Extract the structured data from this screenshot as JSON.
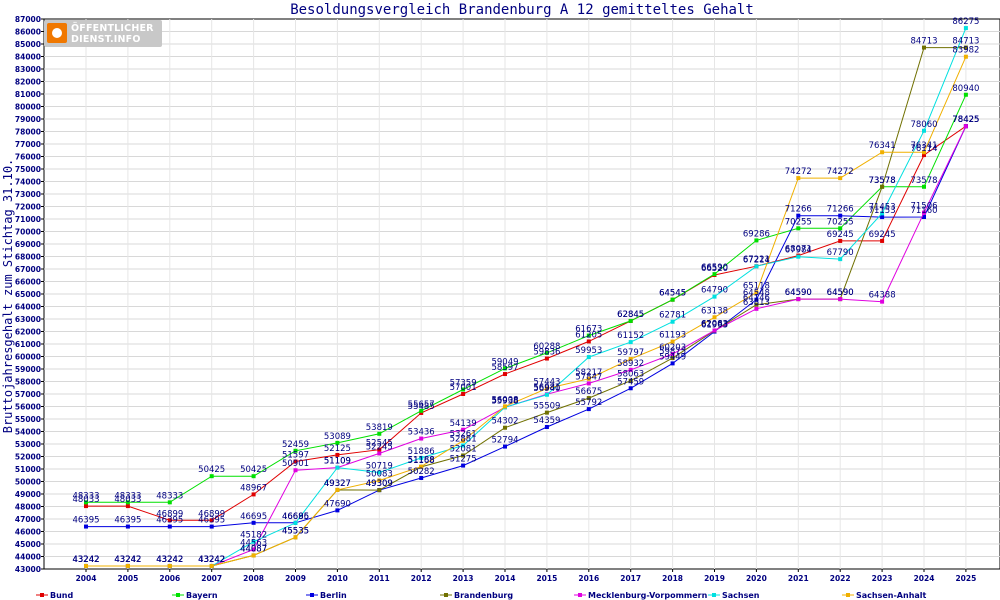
{
  "chart_data": {
    "type": "line",
    "title": "Besoldungsvergleich Brandenburg A 12 gemitteltes Gehalt",
    "xlabel": "",
    "ylabel": "Bruttojahresgehalt zum Stichtag 31.10.",
    "x": [
      "2004",
      "2005",
      "2006",
      "2007",
      "2008",
      "2009",
      "2010",
      "2011",
      "2012",
      "2013",
      "2014",
      "2015",
      "2016",
      "2017",
      "2018",
      "2019",
      "2020",
      "2021",
      "2022",
      "2023",
      "2024",
      "2025"
    ],
    "ylim": [
      43000,
      87000
    ],
    "ytick_step": 1000,
    "grid": true,
    "legend_position": "bottom",
    "series": [
      {
        "name": "Bund",
        "color": "#e00000",
        "values": [
          48033,
          48033,
          46899,
          46899,
          48967,
          51597,
          52125,
          52545,
          55485,
          57001,
          58597,
          59836,
          61205,
          62845,
          64545,
          66520,
          67221,
          68071,
          69245,
          69245,
          76114,
          78425
        ]
      },
      {
        "name": "Bayern",
        "color": "#00e000",
        "values": [
          48333,
          48333,
          48333,
          50425,
          50425,
          52459,
          53089,
          53819,
          55657,
          57359,
          59049,
          60288,
          61673,
          62845,
          64545,
          66590,
          69286,
          70255,
          70255,
          73578,
          73578,
          80940
        ]
      },
      {
        "name": "Berlin",
        "color": "#0000e0",
        "values": [
          46395,
          46395,
          46395,
          46395,
          46695,
          46695,
          47690,
          49309,
          50282,
          51275,
          52794,
          54359,
          55792,
          57459,
          59449,
          61993,
          64548,
          71266,
          71266,
          71153,
          71160,
          78425
        ]
      },
      {
        "name": "Brandenburg",
        "color": "#707000",
        "values": [
          43242,
          43242,
          43242,
          43242,
          44087,
          45535,
          49327,
          49309,
          51168,
          52081,
          54302,
          55509,
          56675,
          58063,
          59875,
          62063,
          64146,
          64590,
          64590,
          73578,
          84713,
          84713
        ]
      },
      {
        "name": "Mecklenburg-Vorpommern",
        "color": "#e000e0",
        "values": [
          43242,
          43242,
          43242,
          43242,
          44563,
          50901,
          51109,
          52245,
          53436,
          54139,
          55938,
          56981,
          57847,
          58932,
          60203,
          62083,
          63813,
          64590,
          64590,
          64388,
          71506,
          78425
        ]
      },
      {
        "name": "Sachsen",
        "color": "#00e0e0",
        "values": [
          43242,
          43242,
          43242,
          43242,
          45182,
          46686,
          51109,
          50719,
          51886,
          52881,
          55938,
          56940,
          59953,
          61152,
          62781,
          64790,
          67214,
          67984,
          67790,
          71453,
          78060,
          86275
        ]
      },
      {
        "name": "Sachsen-Anhalt",
        "color": "#f0b000",
        "values": [
          43242,
          43242,
          43242,
          43242,
          44087,
          45535,
          49327,
          50083,
          51188,
          53261,
          56008,
          57443,
          58217,
          59797,
          61193,
          63138,
          65118,
          74272,
          74272,
          76341,
          76341,
          83982
        ]
      }
    ]
  },
  "logo": {
    "line1": "ÖFFENTLICHER",
    "line2": "DIENST.INFO"
  }
}
